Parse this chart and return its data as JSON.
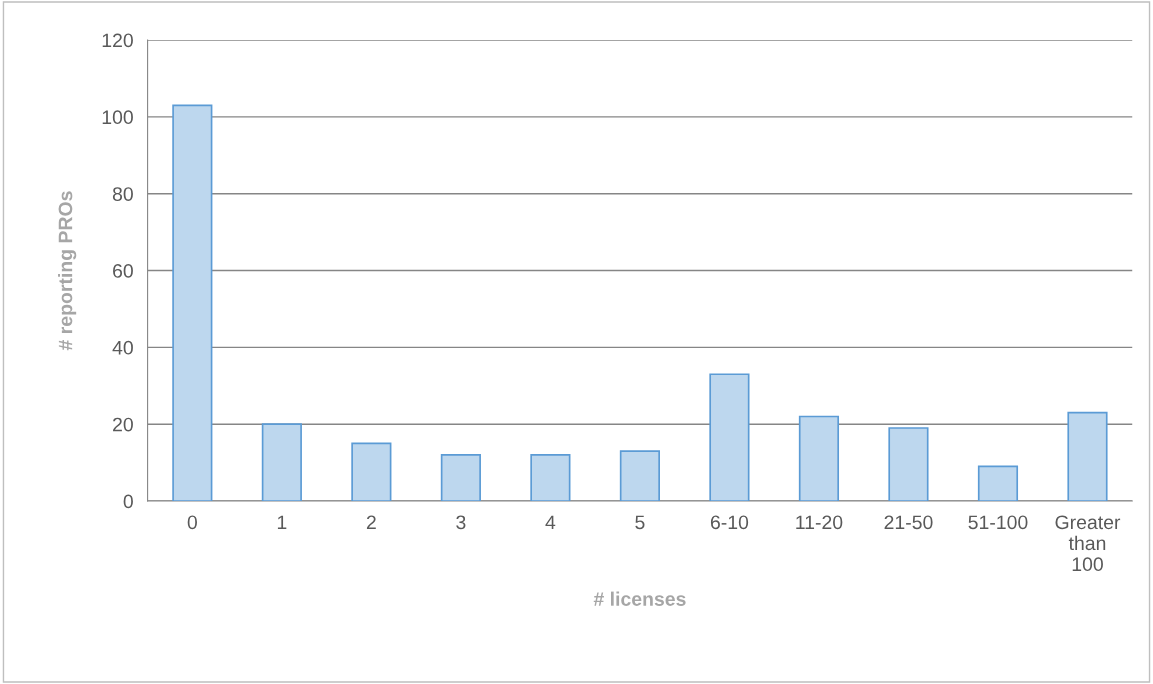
{
  "chart_data": {
    "type": "bar",
    "xlabel": "# licenses",
    "ylabel": "# reporting PROs",
    "categories": [
      "0",
      "1",
      "2",
      "3",
      "4",
      "5",
      "6-10",
      "11-20",
      "21-50",
      "51-100",
      "Greater than 100"
    ],
    "values": [
      103,
      20,
      15,
      12,
      12,
      13,
      33,
      22,
      19,
      9,
      23
    ],
    "color": "#bdd7ee",
    "ylim": [
      0,
      120
    ],
    "yticks": [
      0,
      20,
      40,
      60,
      80,
      100,
      120
    ],
    "grid": "y"
  }
}
